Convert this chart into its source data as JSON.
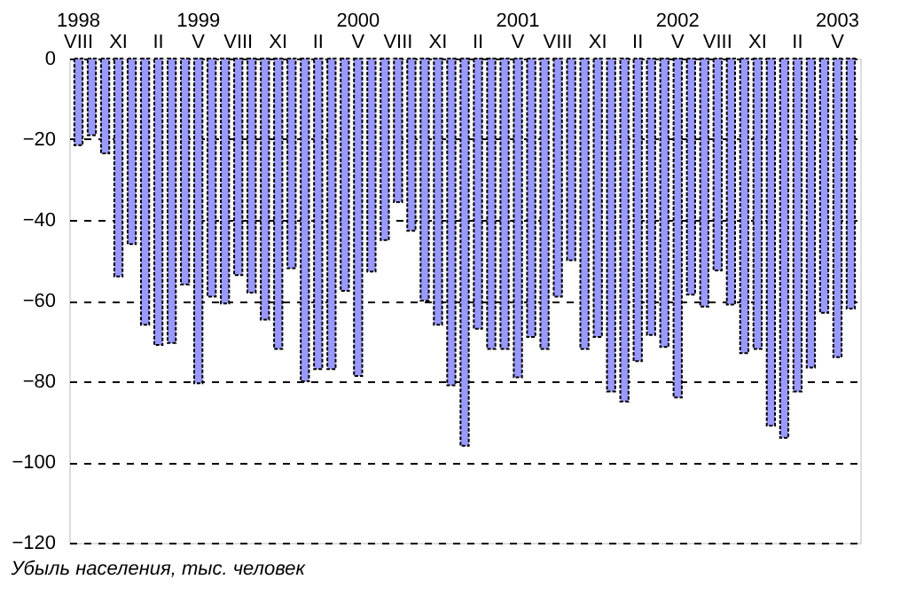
{
  "chart_data": {
    "type": "bar",
    "categories": [
      "1998\nVIII",
      null,
      null,
      "XI",
      null,
      null,
      "II",
      null,
      null,
      "1999\nV",
      null,
      null,
      "VIII",
      null,
      null,
      "XI",
      null,
      null,
      "II",
      null,
      null,
      "2000\nV",
      null,
      null,
      "VIII",
      null,
      null,
      "XI",
      null,
      null,
      "II",
      null,
      null,
      "2001\nV",
      null,
      null,
      "VIII",
      null,
      null,
      "XI",
      null,
      null,
      "II",
      null,
      null,
      "2002\nV",
      null,
      null,
      "VIII",
      null,
      null,
      "XI",
      null,
      null,
      "II",
      null,
      null,
      "2003\nV",
      null
    ],
    "values": [
      -21.5,
      -19,
      -23.5,
      -54,
      -46,
      -66,
      -71,
      -70.5,
      -56,
      -80.5,
      -59,
      -60.7,
      -53.7,
      -58,
      -64.7,
      -72,
      -52,
      -80,
      -77,
      -77,
      -57.6,
      -78.7,
      -52.8,
      -45,
      -35.6,
      -42.7,
      -60,
      -66,
      -81,
      -96,
      -67,
      -72,
      -72,
      -79,
      -69,
      -72,
      -59,
      -50,
      -72,
      -69,
      -82.5,
      -85,
      -75,
      -68.5,
      -71.5,
      -84,
      -58.5,
      -61.5,
      -52.5,
      -61,
      -73,
      -72,
      -91,
      -94,
      -82.5,
      -76.6,
      -63,
      -74,
      -62
    ],
    "color": "#9999ff",
    "ylim": [
      -120,
      0
    ],
    "yticks": [
      0,
      -20,
      -40,
      -60,
      -80,
      -100,
      -120
    ],
    "grid": "y",
    "annotations": [
      "Убыль населения, тыс. человек"
    ]
  }
}
